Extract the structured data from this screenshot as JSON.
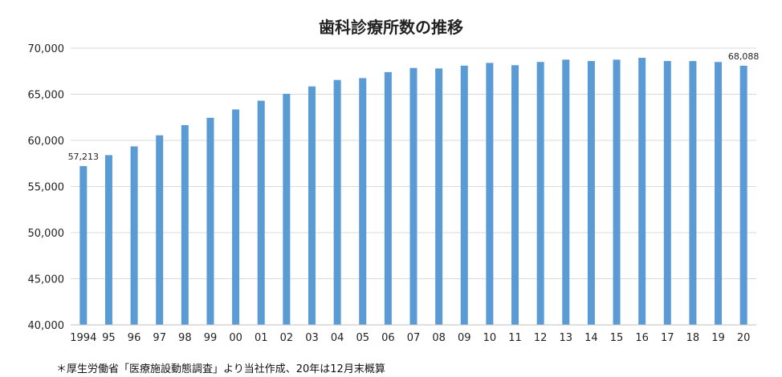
{
  "chart_data": {
    "type": "bar",
    "title": "歯科診療所数の推移",
    "footnote": "＊厚生労働省「医療施設動態調査」より当社作成、20年は12月末概算",
    "categories": [
      "1994",
      "95",
      "96",
      "97",
      "98",
      "99",
      "00",
      "01",
      "02",
      "03",
      "04",
      "05",
      "06",
      "07",
      "08",
      "09",
      "10",
      "11",
      "12",
      "13",
      "14",
      "15",
      "16",
      "17",
      "18",
      "19",
      "20"
    ],
    "values": [
      57213,
      58400,
      59350,
      60550,
      61650,
      62450,
      63350,
      64300,
      65050,
      65850,
      66550,
      66750,
      67400,
      67850,
      67800,
      68100,
      68400,
      68150,
      68500,
      68750,
      68600,
      68750,
      68950,
      68600,
      68600,
      68500,
      68088
    ],
    "data_labels": [
      {
        "index": 0,
        "text": "57,213"
      },
      {
        "index": 26,
        "text": "68,088"
      }
    ],
    "ylim": [
      40000,
      70000
    ],
    "yticks": [
      40000,
      45000,
      50000,
      55000,
      60000,
      65000,
      70000
    ],
    "ytick_labels": [
      "40,000",
      "45,000",
      "50,000",
      "55,000",
      "60,000",
      "65,000",
      "70,000"
    ],
    "grid": true,
    "bar_color": "#5B9BD5",
    "grid_color": "#D9D9D9",
    "axis_color": "#BFBFBF"
  }
}
